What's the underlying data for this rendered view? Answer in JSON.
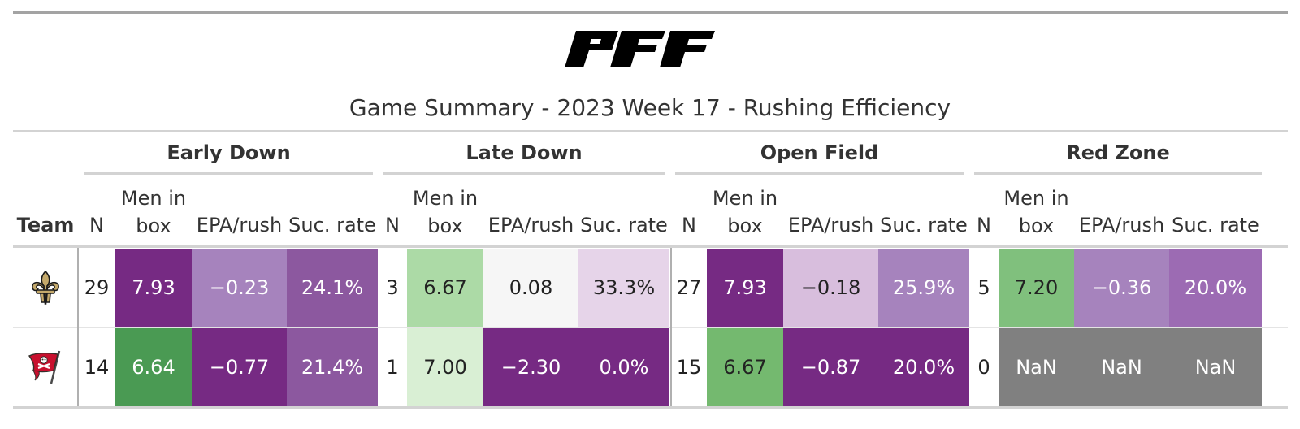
{
  "header": {
    "logo_text": "PFF",
    "title": "Game Summary - 2023 Week 17 - Rushing Efficiency"
  },
  "columns": {
    "team": "Team",
    "n": "N",
    "men_in_box_line1": "Men in",
    "men_in_box_line2": "box",
    "epa": "EPA/rush",
    "suc": "Suc. rate"
  },
  "groups": [
    "Early Down",
    "Late Down",
    "Open Field",
    "Red Zone"
  ],
  "rows": [
    {
      "team_icon": "saints-fleur-de-lis-logo",
      "cells": [
        {
          "v": "29",
          "bg": "#ffffff",
          "fg": "#222222"
        },
        {
          "v": "7.93",
          "bg": "#762a83",
          "fg": "#ffffff"
        },
        {
          "v": "−0.23",
          "bg": "#a683bd",
          "fg": "#ffffff"
        },
        {
          "v": "24.1%",
          "bg": "#8c589f",
          "fg": "#ffffff"
        },
        {
          "v": "3",
          "bg": "#ffffff",
          "fg": "#222222"
        },
        {
          "v": "6.67",
          "bg": "#acdaa6",
          "fg": "#222222"
        },
        {
          "v": "0.08",
          "bg": "#f6f6f6",
          "fg": "#222222"
        },
        {
          "v": "33.3%",
          "bg": "#e6d4e9",
          "fg": "#222222"
        },
        {
          "v": "27",
          "bg": "#ffffff",
          "fg": "#222222"
        },
        {
          "v": "7.93",
          "bg": "#762a83",
          "fg": "#ffffff"
        },
        {
          "v": "−0.18",
          "bg": "#d8bedd",
          "fg": "#222222"
        },
        {
          "v": "25.9%",
          "bg": "#a683bd",
          "fg": "#ffffff"
        },
        {
          "v": "5",
          "bg": "#ffffff",
          "fg": "#222222"
        },
        {
          "v": "7.20",
          "bg": "#80c07d",
          "fg": "#222222"
        },
        {
          "v": "−0.36",
          "bg": "#a683bd",
          "fg": "#ffffff"
        },
        {
          "v": "20.0%",
          "bg": "#9c6bb3",
          "fg": "#ffffff"
        }
      ]
    },
    {
      "team_icon": "buccaneers-flag-logo",
      "cells": [
        {
          "v": "14",
          "bg": "#ffffff",
          "fg": "#222222"
        },
        {
          "v": "6.64",
          "bg": "#4a9a53",
          "fg": "#ffffff"
        },
        {
          "v": "−0.77",
          "bg": "#762a83",
          "fg": "#ffffff"
        },
        {
          "v": "21.4%",
          "bg": "#8c589f",
          "fg": "#ffffff"
        },
        {
          "v": "1",
          "bg": "#ffffff",
          "fg": "#222222"
        },
        {
          "v": "7.00",
          "bg": "#d9efd4",
          "fg": "#222222"
        },
        {
          "v": "−2.30",
          "bg": "#762a83",
          "fg": "#ffffff"
        },
        {
          "v": "0.0%",
          "bg": "#762a83",
          "fg": "#ffffff"
        },
        {
          "v": "15",
          "bg": "#ffffff",
          "fg": "#222222"
        },
        {
          "v": "6.67",
          "bg": "#74b96f",
          "fg": "#222222"
        },
        {
          "v": "−0.87",
          "bg": "#762a83",
          "fg": "#ffffff"
        },
        {
          "v": "20.0%",
          "bg": "#762a83",
          "fg": "#ffffff"
        },
        {
          "v": "0",
          "bg": "#ffffff",
          "fg": "#222222"
        },
        {
          "v": "NaN",
          "bg": "#808080",
          "fg": "#ffffff"
        },
        {
          "v": "NaN",
          "bg": "#808080",
          "fg": "#ffffff"
        },
        {
          "v": "NaN",
          "bg": "#808080",
          "fg": "#ffffff"
        }
      ]
    }
  ]
}
